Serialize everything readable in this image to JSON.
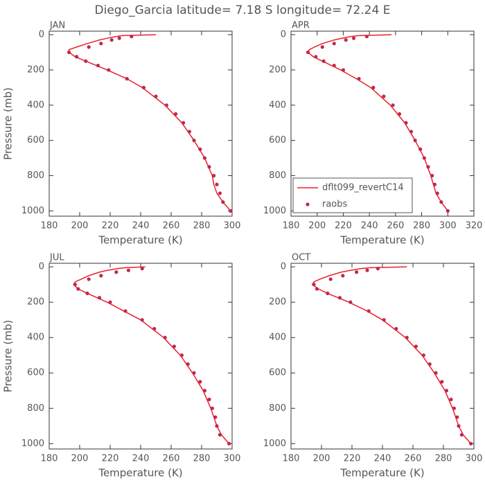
{
  "title": "Diego_Garcia  latitude= 7.18 S longitude= 72.24 E",
  "chart_data": [
    {
      "type": "line",
      "title": "JAN",
      "xlabel": "Temperature (K)",
      "ylabel": "Pressure (mb)",
      "xlim": [
        180,
        300
      ],
      "xticks": [
        180,
        200,
        220,
        240,
        260,
        280,
        300
      ],
      "ylim": [
        1030,
        -20
      ],
      "yticks": [
        0,
        200,
        400,
        600,
        800,
        1000
      ],
      "invert_y": true,
      "series": [
        {
          "type": "line",
          "color": "#e8202a",
          "x": [
            250,
            228,
            224,
            218,
            213,
            205,
            198,
            193,
            193,
            197,
            204,
            218,
            231,
            241,
            256,
            267,
            275,
            282,
            287,
            288,
            290,
            294,
            299
          ],
          "y": [
            0,
            5,
            10,
            20,
            30,
            50,
            70,
            85,
            100,
            125,
            150,
            200,
            250,
            300,
            400,
            500,
            600,
            700,
            800,
            850,
            900,
            950,
            1000
          ]
        },
        {
          "type": "scatter",
          "color": "#c0284e",
          "x": [
            234,
            226,
            221,
            214,
            206,
            193,
            198,
            204,
            212,
            219,
            231,
            242,
            250,
            257,
            263,
            268,
            272,
            275,
            279,
            282,
            285,
            288,
            290,
            292,
            294,
            299
          ],
          "y": [
            10,
            20,
            30,
            50,
            70,
            100,
            125,
            150,
            175,
            200,
            250,
            300,
            350,
            400,
            450,
            500,
            550,
            600,
            650,
            700,
            750,
            800,
            850,
            900,
            950,
            1000
          ]
        }
      ]
    },
    {
      "type": "line",
      "title": "APR",
      "xlabel": "Temperature (K)",
      "xlim": [
        180,
        320
      ],
      "xticks": [
        180,
        200,
        220,
        240,
        260,
        280,
        300,
        320
      ],
      "ylim": [
        1030,
        -20
      ],
      "yticks": [
        0,
        200,
        400,
        600,
        800,
        1000
      ],
      "invert_y": true,
      "legend": "lower left",
      "series": [
        {
          "type": "line",
          "name": "dflt099_revertC14",
          "color": "#e8202a",
          "x": [
            257,
            232,
            226,
            219,
            213,
            204,
            198,
            194,
            193,
            197,
            204,
            218,
            230,
            241,
            256,
            267,
            275,
            282,
            287,
            289,
            291,
            295,
            300
          ],
          "y": [
            0,
            5,
            10,
            20,
            30,
            50,
            70,
            85,
            100,
            125,
            150,
            200,
            250,
            300,
            400,
            500,
            600,
            700,
            800,
            850,
            900,
            950,
            1000
          ]
        },
        {
          "type": "scatter",
          "name": "raobs",
          "color": "#c0284e",
          "x": [
            238,
            228,
            222,
            213,
            204,
            193,
            199,
            205,
            213,
            220,
            232,
            243,
            251,
            258,
            263,
            268,
            272,
            275,
            279,
            282,
            285,
            288,
            290,
            292,
            295,
            300
          ],
          "y": [
            10,
            20,
            30,
            50,
            70,
            100,
            125,
            150,
            175,
            200,
            250,
            300,
            350,
            400,
            450,
            500,
            550,
            600,
            650,
            700,
            750,
            800,
            850,
            900,
            950,
            1000
          ]
        }
      ]
    },
    {
      "type": "line",
      "title": "JUL",
      "xlabel": "Temperature (K)",
      "ylabel": "Pressure (mb)",
      "xlim": [
        180,
        300
      ],
      "xticks": [
        180,
        200,
        220,
        240,
        260,
        280,
        300
      ],
      "ylim": [
        1030,
        -20
      ],
      "yticks": [
        0,
        200,
        400,
        600,
        800,
        1000
      ],
      "invert_y": true,
      "series": [
        {
          "type": "line",
          "color": "#e8202a",
          "x": [
            243,
            230,
            225,
            218,
            213,
            206,
            201,
            197,
            196,
            199,
            205,
            218,
            229,
            240,
            255,
            266,
            274,
            281,
            286,
            288,
            290,
            293,
            298
          ],
          "y": [
            0,
            5,
            10,
            20,
            30,
            50,
            70,
            85,
            100,
            125,
            150,
            200,
            250,
            300,
            400,
            500,
            600,
            700,
            800,
            850,
            900,
            950,
            1000
          ]
        },
        {
          "type": "scatter",
          "color": "#c0284e",
          "x": [
            241,
            232,
            224,
            214,
            206,
            197,
            199,
            205,
            213,
            220,
            230,
            241,
            249,
            256,
            262,
            267,
            271,
            275,
            279,
            282,
            285,
            287,
            289,
            290,
            292,
            298
          ],
          "y": [
            10,
            20,
            30,
            50,
            70,
            100,
            125,
            150,
            175,
            200,
            250,
            300,
            350,
            400,
            450,
            500,
            550,
            600,
            650,
            700,
            750,
            800,
            850,
            900,
            950,
            1000
          ]
        }
      ]
    },
    {
      "type": "line",
      "title": "OCT",
      "xlabel": "Temperature (K)",
      "xlim": [
        180,
        300
      ],
      "xticks": [
        180,
        200,
        220,
        240,
        260,
        280,
        300
      ],
      "ylim": [
        1030,
        -20
      ],
      "yticks": [
        0,
        200,
        400,
        600,
        800,
        1000
      ],
      "invert_y": true,
      "series": [
        {
          "type": "line",
          "color": "#e8202a",
          "x": [
            256,
            232,
            226,
            219,
            213,
            205,
            199,
            195,
            194,
            198,
            204,
            218,
            230,
            240,
            255,
            266,
            274,
            281,
            286,
            288,
            290,
            293,
            298
          ],
          "y": [
            0,
            5,
            10,
            20,
            30,
            50,
            70,
            85,
            100,
            125,
            150,
            200,
            250,
            300,
            400,
            500,
            600,
            700,
            800,
            850,
            900,
            950,
            1000
          ]
        },
        {
          "type": "scatter",
          "color": "#c0284e",
          "x": [
            237,
            230,
            223,
            214,
            206,
            195,
            197,
            204,
            212,
            219,
            231,
            241,
            249,
            256,
            262,
            267,
            271,
            275,
            279,
            282,
            285,
            287,
            289,
            290,
            292,
            298
          ],
          "y": [
            10,
            20,
            30,
            50,
            70,
            100,
            125,
            150,
            175,
            200,
            250,
            300,
            350,
            400,
            450,
            500,
            550,
            600,
            650,
            700,
            750,
            800,
            850,
            900,
            950,
            1000
          ]
        }
      ]
    }
  ]
}
